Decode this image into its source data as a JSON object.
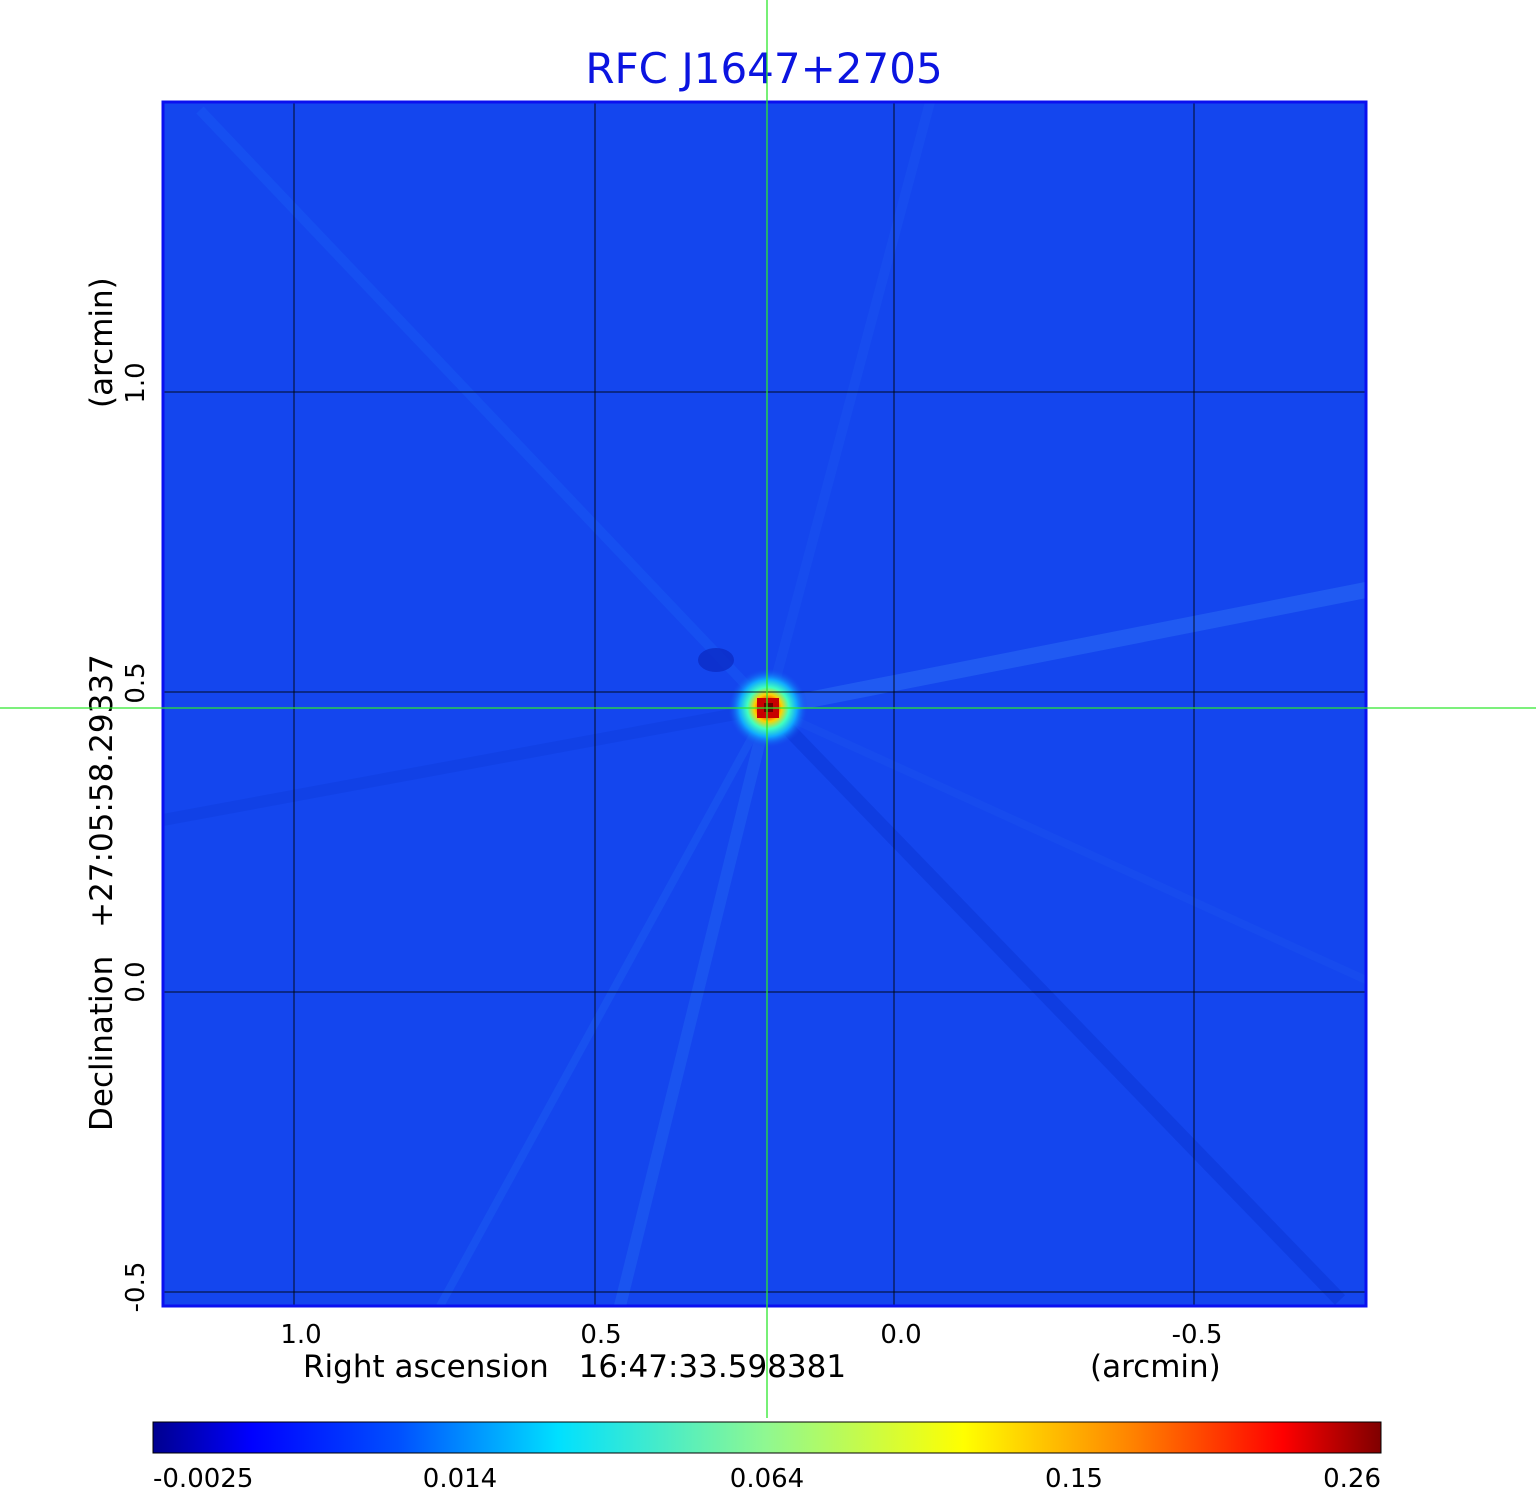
{
  "title": "RFC J1647+2705",
  "x_axis": {
    "label": "Right ascension",
    "center": "16:47:33.598381",
    "unit": "(arcmin)",
    "ticks": [
      "1.0",
      "0.5",
      "0.0",
      "-0.5"
    ]
  },
  "y_axis": {
    "label": "Declination",
    "center": "+27:05:58.29337",
    "unit": "(arcmin)",
    "ticks": [
      "1.0",
      "0.5",
      "0.0",
      "-0.5"
    ]
  },
  "colorbar": {
    "colormap": "jet",
    "ticks": [
      "-0.0025",
      "0.014",
      "0.064",
      "0.15",
      "0.26"
    ]
  },
  "colors": {
    "title": "#0b14e0",
    "frame": "#0a10f0",
    "background_map": "#1446ee",
    "crosshair": "#2de82d"
  }
}
